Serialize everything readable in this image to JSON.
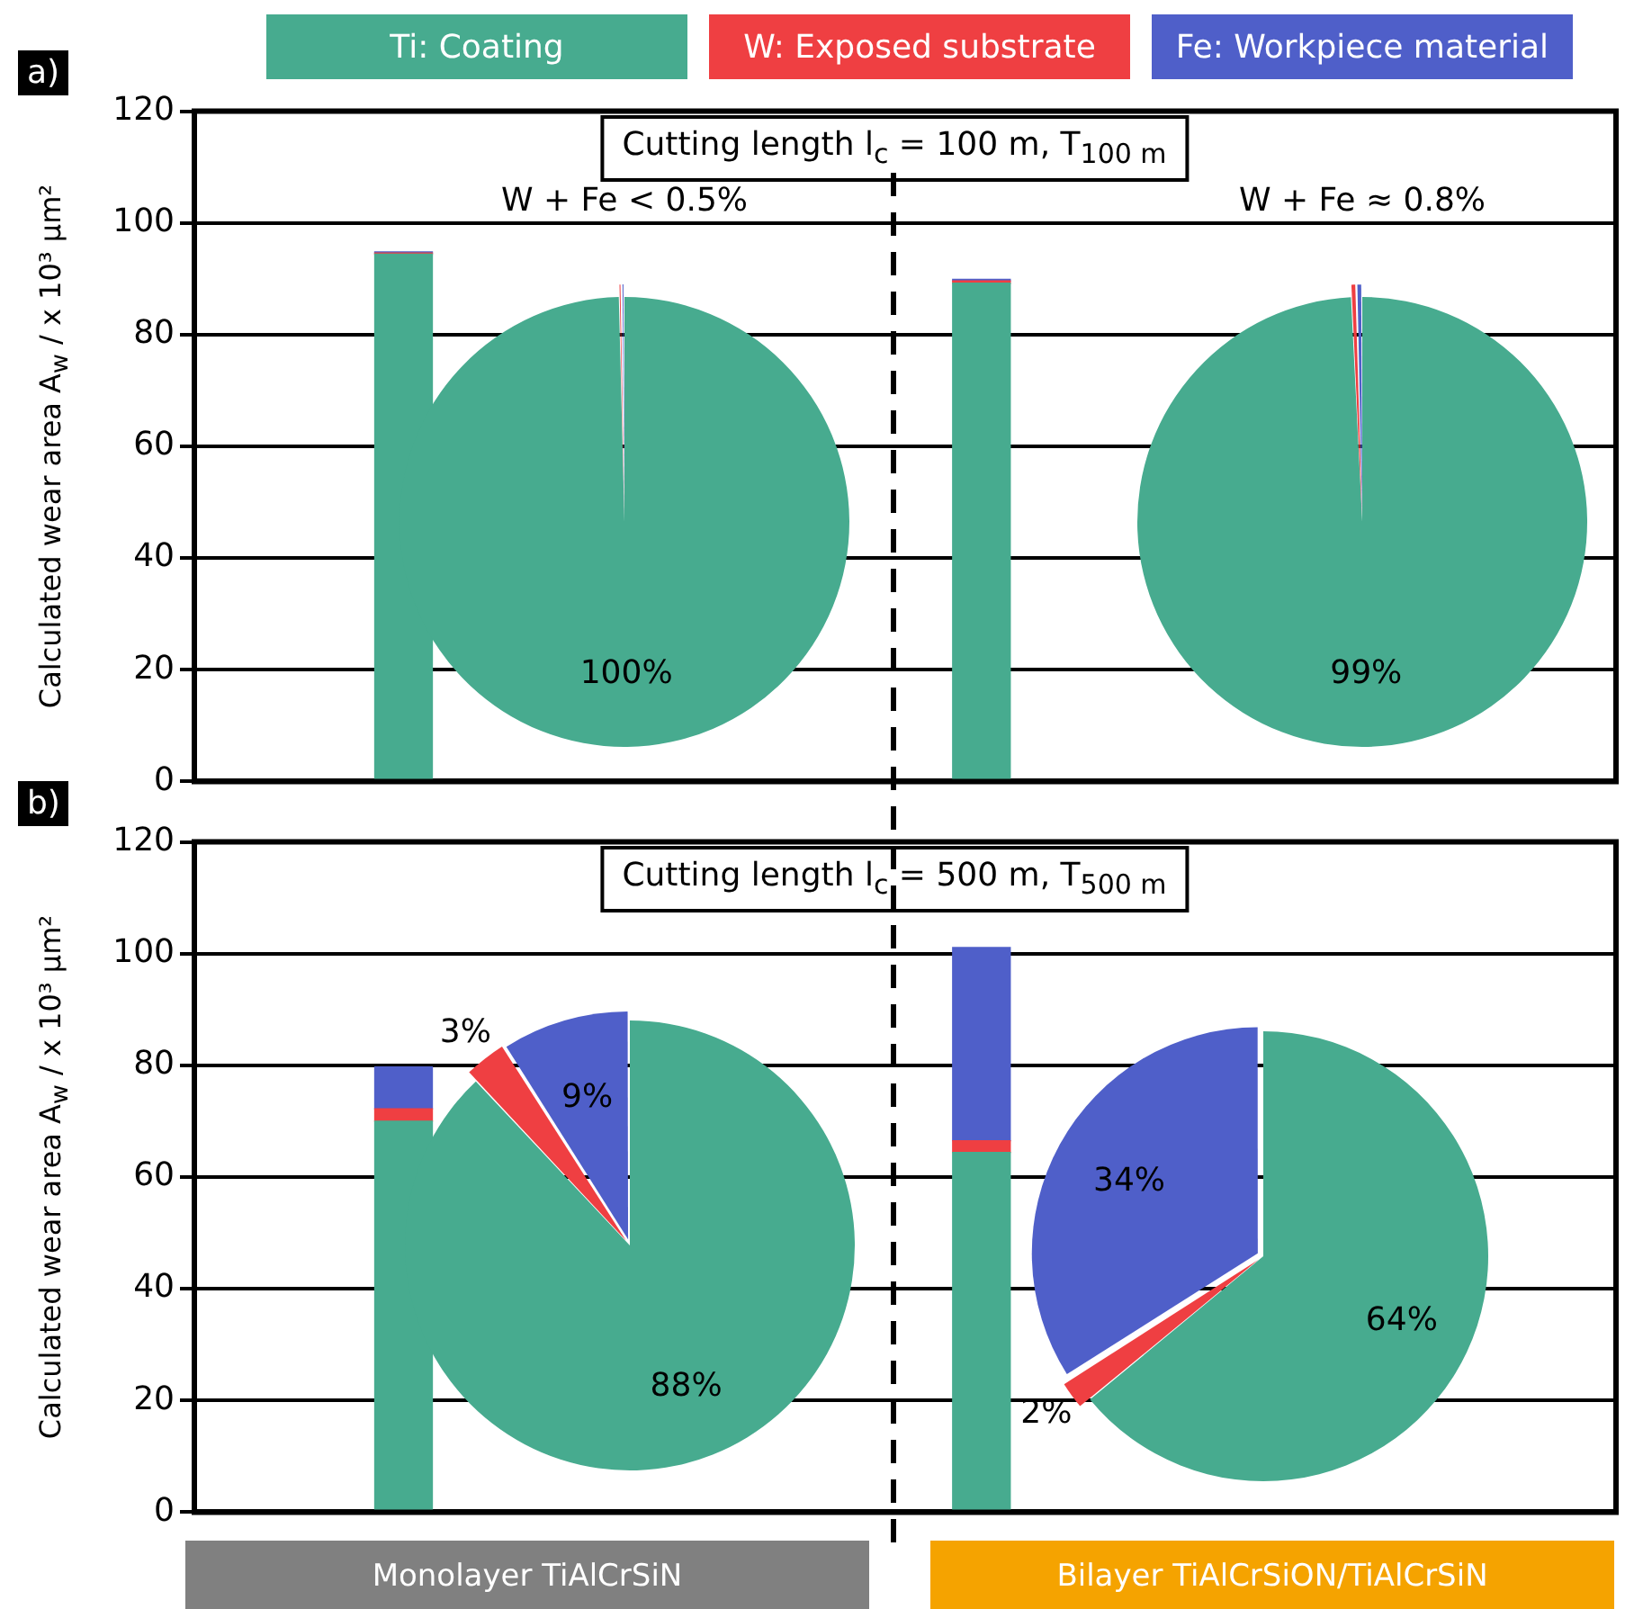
{
  "chart_data": [
    {
      "type": "bar",
      "annotations": [
        "a)"
      ],
      "title": "Cutting length l$_{c}$ = 100 m, T$_{100 m}$",
      "ylabel": "Calculated wear area A$_{w}$ / x 10³ µm²",
      "categories": [
        null,
        null
      ],
      "stacked": true,
      "series": [
        {
          "name": "Ti: Coating",
          "color": "#47ab8f",
          "values": [
            94.4,
            89.2
          ]
        },
        {
          "name": "W: Exposed substrate",
          "color": "#ef3f42",
          "values": [
            0.2,
            0.4
          ]
        },
        {
          "name": "Fe: Workpiece material",
          "color": "#4f5fc9",
          "values": [
            0.2,
            0.3
          ]
        }
      ],
      "ylim": [
        0,
        120
      ],
      "yticks": [
        0,
        20,
        40,
        60,
        80,
        100,
        120
      ],
      "grid": "y",
      "legend": "top",
      "tick_labels": "y"
    },
    {
      "type": "pie",
      "title": "W + Fe < 0.5%",
      "categories": [
        null,
        null,
        null
      ],
      "values": [
        99.6,
        0.2,
        0.2
      ],
      "colors": [
        "#47ab8f",
        "#ef3f42",
        "#4f5fc9"
      ],
      "value_labels": [
        "100%",
        null,
        null
      ]
    },
    {
      "type": "pie",
      "title": "W + Fe ≈ 0.8%",
      "categories": [
        null,
        null,
        null
      ],
      "values": [
        99.2,
        0.4,
        0.4
      ],
      "colors": [
        "#47ab8f",
        "#ef3f42",
        "#4f5fc9"
      ],
      "value_labels": [
        "99%",
        null,
        null
      ]
    },
    {
      "type": "bar",
      "annotations": [
        "b)"
      ],
      "title": "Cutting length l$_{c}$ = 500 m, T$_{500 m}$",
      "ylabel": "Calculated wear area A$_{w}$ / x 10³ µm²",
      "categories": [
        "Monolayer TiAlCrSiN",
        "Bilayer TiAlCrSiON/TiAlCrSiN"
      ],
      "stacked": true,
      "series": [
        {
          "color": "#47ab8f",
          "values": [
            70.0,
            64.4
          ]
        },
        {
          "color": "#ef3f42",
          "values": [
            2.2,
            2.1
          ]
        },
        {
          "color": "#4f5fc9",
          "values": [
            7.5,
            34.6
          ]
        }
      ],
      "ylim": [
        0,
        120
      ],
      "yticks": [
        0,
        20,
        40,
        60,
        80,
        100,
        120
      ],
      "grid": "y"
    },
    {
      "type": "pie",
      "categories": [
        null,
        null,
        null
      ],
      "values": [
        88,
        3,
        9
      ],
      "colors": [
        "#47ab8f",
        "#ef3f42",
        "#4f5fc9"
      ],
      "value_labels": [
        "88%",
        "3%",
        "9%"
      ]
    },
    {
      "type": "pie",
      "categories": [
        null,
        null,
        null
      ],
      "values": [
        64,
        2,
        34
      ],
      "colors": [
        "#47ab8f",
        "#ef3f42",
        "#4f5fc9"
      ],
      "value_labels": [
        "64%",
        "2%",
        "34%"
      ]
    }
  ]
}
